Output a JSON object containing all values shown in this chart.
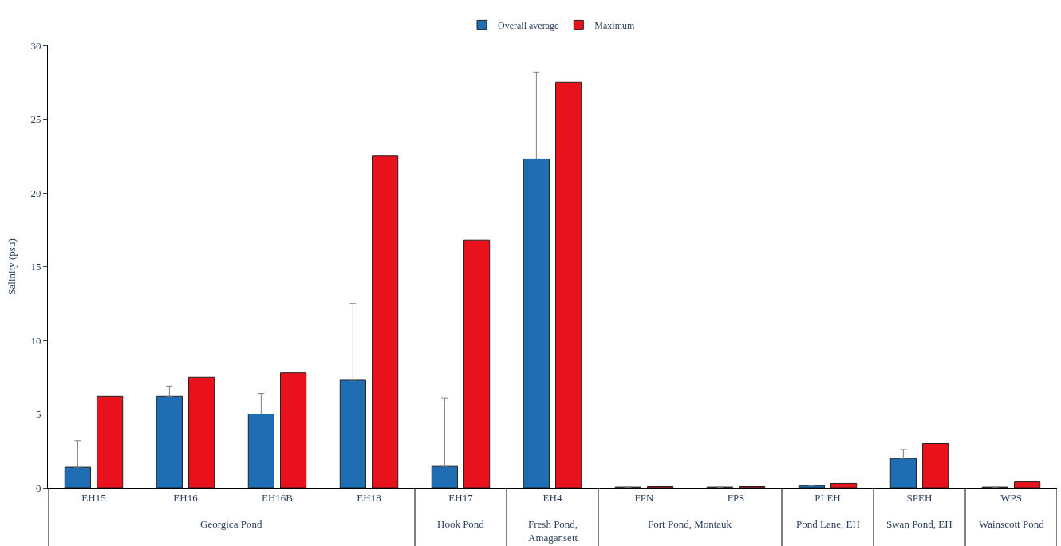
{
  "chart_data": {
    "type": "bar",
    "ylabel": "Salinity (psu)",
    "categories": [
      "EH15",
      "EH16",
      "EH16B",
      "EH18",
      "EH17",
      "EH4",
      "FPN",
      "FPS",
      "PLEH",
      "SPEH",
      "WPS"
    ],
    "series": [
      {
        "name": "Overall average",
        "color": "#1f6db3",
        "values": [
          1.4,
          6.2,
          5.0,
          7.3,
          1.45,
          22.3,
          0.05,
          0.05,
          0.15,
          2.0,
          0.05
        ],
        "errors": [
          [
            1.4,
            3.2
          ],
          [
            6.2,
            6.9
          ],
          [
            5.0,
            6.4
          ],
          [
            7.3,
            12.5
          ],
          [
            1.45,
            6.1
          ],
          [
            22.3,
            28.2
          ],
          null,
          null,
          null,
          [
            2.0,
            2.6
          ],
          null
        ]
      },
      {
        "name": "Maximum",
        "color": "#e8111c",
        "values": [
          6.2,
          7.5,
          7.8,
          22.5,
          16.8,
          27.5,
          0.08,
          0.08,
          0.3,
          3.0,
          0.4
        ]
      }
    ],
    "annotations": [
      "Georgica Pond",
      "Hook Pond",
      "Fresh Pond,\nAmagansett",
      "Fort Pond, Montauk",
      "Pond Lane, EH",
      "Swan Pond, EH",
      "Wainscott Pond"
    ],
    "ylim": [
      0,
      30
    ],
    "yticks": [
      0,
      5,
      10,
      15,
      20,
      25,
      30
    ],
    "legend": "top"
  }
}
